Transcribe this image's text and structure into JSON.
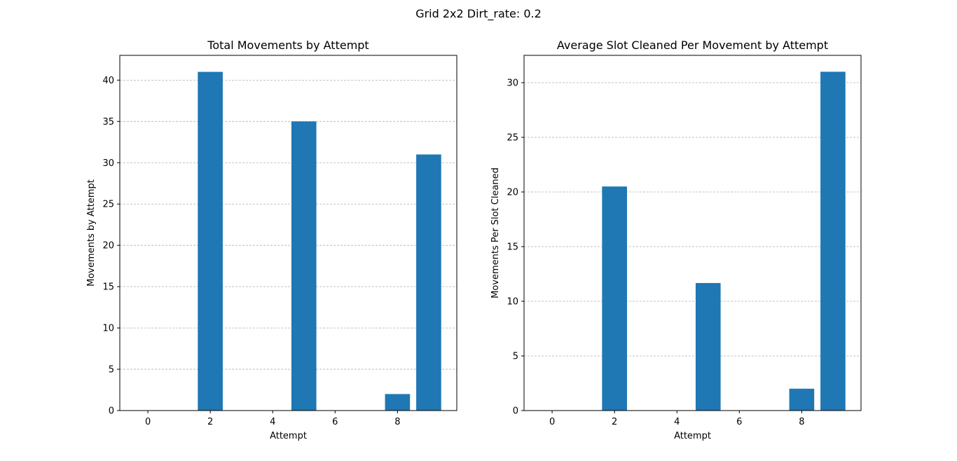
{
  "figure": {
    "suptitle": "Grid 2x2 Dirt_rate: 0.2"
  },
  "chart_data": [
    {
      "type": "bar",
      "title": "Total Movements by Attempt",
      "xlabel": "Attempt",
      "ylabel": "Movements by Attempt",
      "x": [
        0,
        1,
        2,
        3,
        4,
        5,
        6,
        7,
        8,
        9
      ],
      "values": [
        0,
        0,
        41,
        0,
        0,
        35,
        0,
        0,
        2,
        31
      ],
      "xlim": [
        -0.9,
        9.9
      ],
      "ylim": [
        0,
        43
      ],
      "xticks": [
        0,
        2,
        4,
        6,
        8
      ],
      "yticks": [
        0,
        5,
        10,
        15,
        20,
        25,
        30,
        35,
        40
      ],
      "grid": "y-dashed",
      "color": "#1f77b4"
    },
    {
      "type": "bar",
      "title": "Average Slot Cleaned Per Movement by Attempt",
      "xlabel": "Attempt",
      "ylabel": "Movements Per Slot Cleaned",
      "x": [
        0,
        1,
        2,
        3,
        4,
        5,
        6,
        7,
        8,
        9
      ],
      "values": [
        0,
        0,
        20.5,
        0,
        0,
        11.67,
        0,
        0,
        2,
        31
      ],
      "xlim": [
        -0.9,
        9.9
      ],
      "ylim": [
        0,
        32.5
      ],
      "xticks": [
        0,
        2,
        4,
        6,
        8
      ],
      "yticks": [
        0,
        5,
        10,
        15,
        20,
        25,
        30
      ],
      "grid": "y-dashed",
      "color": "#1f77b4"
    }
  ]
}
